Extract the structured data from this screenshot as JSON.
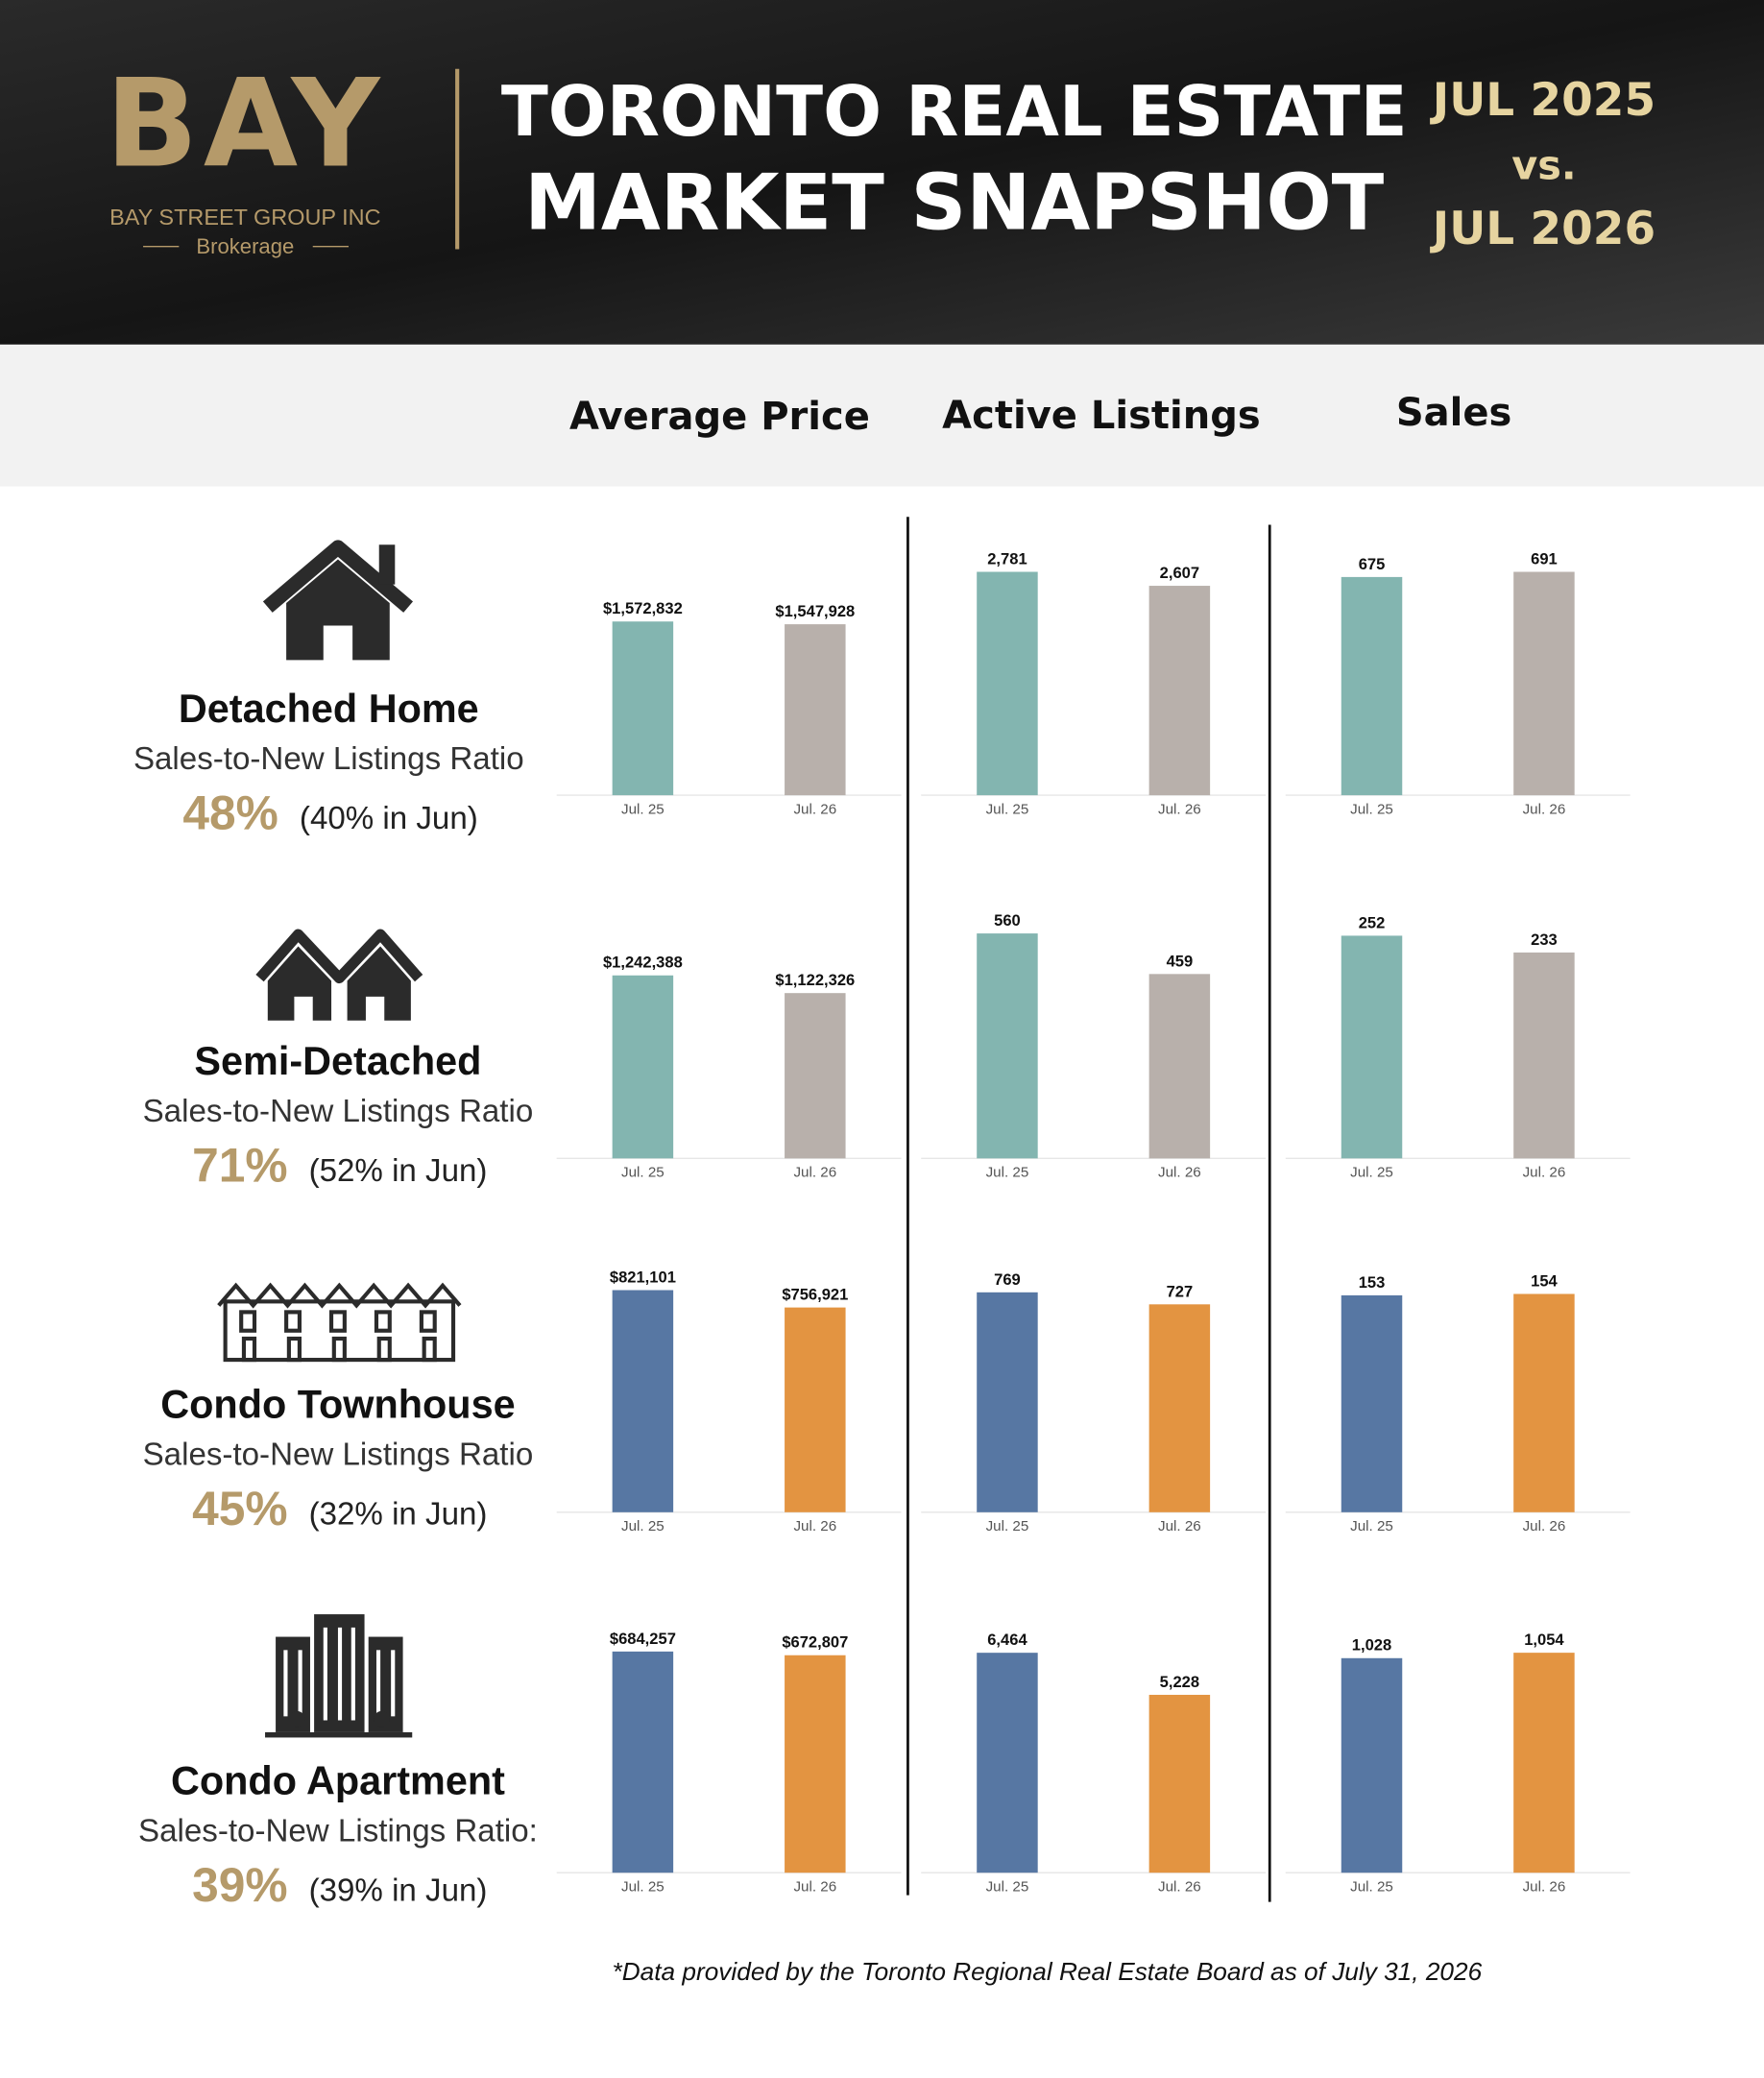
{
  "header": {
    "logo": "BAY",
    "company": "BAY STREET GROUP INC",
    "brokerage": "Brokerage",
    "title_line1": "TORONTO REAL ESTATE",
    "title_line2": "MARKET SNAPSHOT",
    "date_1": "JUL 2025",
    "vs": "vs.",
    "date_2": "JUL 2026"
  },
  "columns": [
    "Average Price",
    "Active Listings",
    "Sales"
  ],
  "property_types": [
    {
      "name": "Detached Home",
      "ratio_label": "Sales-to-New Listings Ratio",
      "ratio": "48%",
      "previous": "(40% in Jun)"
    },
    {
      "name": "Semi-Detached",
      "ratio_label": "Sales-to-New Listings Ratio",
      "ratio": "71%",
      "previous": "(52% in Jun)"
    },
    {
      "name": "Condo Townhouse",
      "ratio_label": "Sales-to-New Listings Ratio",
      "ratio": "45%",
      "previous": "(32% in Jun)"
    },
    {
      "name": "Condo Apartment",
      "ratio_label": "Sales-to-New Listings Ratio:",
      "ratio": "39%",
      "previous": "(39% in Jun)"
    }
  ],
  "chart_data": [
    {
      "type": "bar",
      "categories": [
        "Jul. 25",
        "Jul. 26"
      ],
      "values": [
        1572832,
        1547928
      ],
      "value_labels": [
        "$1,572,832",
        "$1,547,928"
      ],
      "colors": [
        "#83b5b0",
        "#b8b0ab"
      ],
      "ylim": [
        0,
        2400000
      ]
    },
    {
      "type": "bar",
      "categories": [
        "Jul. 25",
        "Jul. 26"
      ],
      "values": [
        2781,
        2607
      ],
      "value_labels": [
        "2,781",
        "2,607"
      ],
      "colors": [
        "#83b5b0",
        "#b8b0ab"
      ],
      "ylim": [
        0,
        3300
      ]
    },
    {
      "type": "bar",
      "categories": [
        "Jul. 25",
        "Jul. 26"
      ],
      "values": [
        675,
        691
      ],
      "colors": [
        "#83b5b0",
        "#b8b0ab"
      ],
      "ylim": [
        0,
        820
      ]
    },
    {
      "type": "bar",
      "categories": [
        "Jul. 25",
        "Jul. 26"
      ],
      "values": [
        1242388,
        1122326
      ],
      "value_labels": [
        "$1,242,388",
        "$1,122,326"
      ],
      "colors": [
        "#83b5b0",
        "#b8b0ab"
      ],
      "ylim": [
        0,
        1800000
      ]
    },
    {
      "type": "bar",
      "categories": [
        "Jul. 25",
        "Jul. 26"
      ],
      "values": [
        560,
        459
      ],
      "colors": [
        "#83b5b0",
        "#b8b0ab"
      ],
      "ylim": [
        0,
        660
      ]
    },
    {
      "type": "bar",
      "categories": [
        "Jul. 25",
        "Jul. 26"
      ],
      "values": [
        252,
        233
      ],
      "colors": [
        "#83b5b0",
        "#b8b0ab"
      ],
      "ylim": [
        0,
        300
      ]
    },
    {
      "type": "bar",
      "categories": [
        "Jul. 25",
        "Jul. 26"
      ],
      "values": [
        821101,
        756921
      ],
      "value_labels": [
        "$821,101",
        "$756,921"
      ],
      "colors": [
        "#5777a3",
        "#e39441"
      ],
      "ylim": [
        0,
        980000
      ]
    },
    {
      "type": "bar",
      "categories": [
        "Jul. 25",
        "Jul. 26"
      ],
      "values": [
        769,
        727
      ],
      "colors": [
        "#5777a3",
        "#e39441"
      ],
      "ylim": [
        0,
        927
      ]
    },
    {
      "type": "bar",
      "categories": [
        "Jul. 25",
        "Jul. 26"
      ],
      "values": [
        153,
        154
      ],
      "colors": [
        "#5777a3",
        "#e39441"
      ],
      "ylim": [
        0,
        187
      ]
    },
    {
      "type": "bar",
      "categories": [
        "Jul. 25",
        "Jul. 26"
      ],
      "values": [
        684257,
        672807
      ],
      "value_labels": [
        "$684,257",
        "$672,807"
      ],
      "colors": [
        "#5777a3",
        "#e39441"
      ],
      "ylim": [
        0,
        820000
      ]
    },
    {
      "type": "bar",
      "categories": [
        "Jul. 25",
        "Jul. 26"
      ],
      "values": [
        6464,
        5228
      ],
      "value_labels": [
        "6,464",
        "5,228"
      ],
      "colors": [
        "#5777a3",
        "#e39441"
      ],
      "ylim": [
        0,
        7790
      ]
    },
    {
      "type": "bar",
      "categories": [
        "Jul. 25",
        "Jul. 26"
      ],
      "values": [
        1028,
        1054
      ],
      "value_labels": [
        "1,028",
        "1,054"
      ],
      "colors": [
        "#5777a3",
        "#e39441"
      ],
      "ylim": [
        0,
        1270
      ]
    }
  ],
  "footnote": "*Data provided by the Toronto Regional Real Estate Board as of July 31, 2026"
}
